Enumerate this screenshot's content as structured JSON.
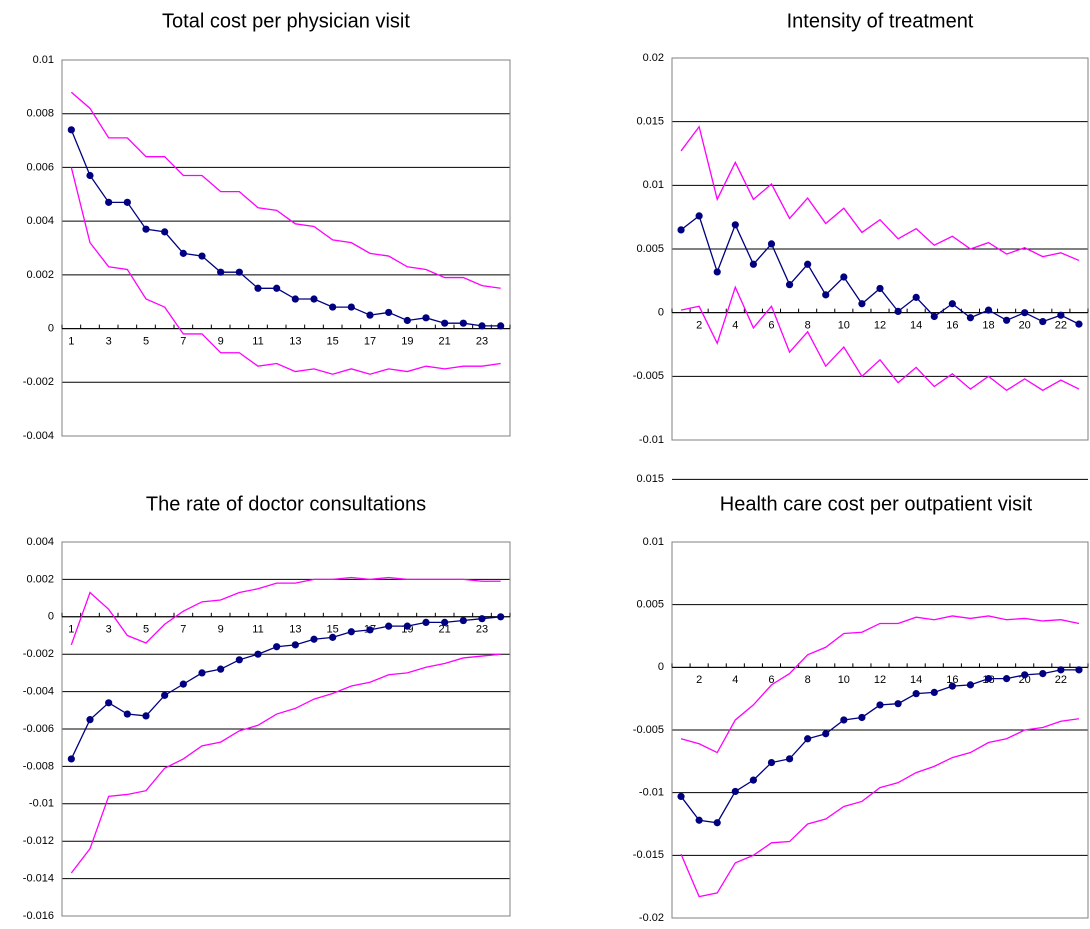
{
  "chart_data": [
    {
      "type": "line",
      "title": "Total cost per physician visit",
      "categories": [
        "1",
        null,
        "3",
        null,
        "5",
        null,
        "7",
        null,
        "9",
        null,
        "11",
        null,
        "13",
        null,
        "15",
        null,
        "17",
        null,
        "19",
        null,
        "21",
        null,
        "23",
        null
      ],
      "series": [
        {
          "color": "#ff00ff",
          "markers": false,
          "values": [
            0.0088,
            0.0082,
            0.0071,
            0.0071,
            0.0064,
            0.0064,
            0.0057,
            0.0057,
            0.0051,
            0.0051,
            0.0045,
            0.0044,
            0.0039,
            0.0038,
            0.0033,
            0.0032,
            0.0028,
            0.0027,
            0.0023,
            0.0022,
            0.0019,
            0.0019,
            0.0016,
            0.0015
          ]
        },
        {
          "color": "#000080",
          "markers": true,
          "values": [
            0.0074,
            0.0057,
            0.0047,
            0.0047,
            0.0037,
            0.0036,
            0.0028,
            0.0027,
            0.0021,
            0.0021,
            0.0015,
            0.0015,
            0.0011,
            0.0011,
            0.0008,
            0.0008,
            0.0005,
            0.0006,
            0.0003,
            0.0004,
            0.0002,
            0.0002,
            0.0001,
            0.0001
          ]
        },
        {
          "color": "#ff00ff",
          "markers": false,
          "values": [
            0.006,
            0.0032,
            0.0023,
            0.0022,
            0.0011,
            0.0008,
            -0.0002,
            -0.0002,
            -0.0009,
            -0.0009,
            -0.0014,
            -0.0013,
            -0.0016,
            -0.0015,
            -0.0017,
            -0.0015,
            -0.0017,
            -0.0015,
            -0.0016,
            -0.0014,
            -0.0015,
            -0.0014,
            -0.0014,
            -0.0013
          ]
        }
      ],
      "ylim": [
        -0.004,
        0.01
      ],
      "yticks": [
        -0.004,
        -0.002,
        0,
        0.002,
        0.004,
        0.006,
        0.008,
        0.01
      ],
      "grid": true
    },
    {
      "type": "line",
      "title": "Intensity of treatment",
      "categories": [
        null,
        "2",
        null,
        "4",
        null,
        "6",
        null,
        "8",
        null,
        "10",
        null,
        "12",
        null,
        "14",
        null,
        "16",
        null,
        "18",
        null,
        "20",
        null,
        "22",
        null
      ],
      "series": [
        {
          "color": "#ff00ff",
          "markers": false,
          "values": [
            0.0127,
            0.0146,
            0.0089,
            0.0118,
            0.0089,
            0.0101,
            0.0074,
            0.009,
            0.007,
            0.0082,
            0.0063,
            0.0073,
            0.0058,
            0.0066,
            0.0053,
            0.006,
            0.005,
            0.0055,
            0.0046,
            0.0051,
            0.0044,
            0.0047,
            0.0041
          ]
        },
        {
          "color": "#000080",
          "markers": true,
          "values": [
            0.0065,
            0.0076,
            0.0032,
            0.0069,
            0.0038,
            0.0054,
            0.0022,
            0.0038,
            0.0014,
            0.0028,
            0.0007,
            0.0019,
            0.0001,
            0.0012,
            -0.0003,
            0.0007,
            -0.0004,
            0.0002,
            -0.0006,
            0.0,
            -0.0007,
            -0.0002,
            -0.0009
          ]
        },
        {
          "color": "#ff00ff",
          "markers": false,
          "values": [
            0.0002,
            0.0005,
            -0.0024,
            0.002,
            -0.0012,
            0.0005,
            -0.0031,
            -0.0015,
            -0.0042,
            -0.0027,
            -0.005,
            -0.0037,
            -0.0055,
            -0.0043,
            -0.0058,
            -0.0048,
            -0.006,
            -0.005,
            -0.0061,
            -0.0052,
            -0.0061,
            -0.0053,
            -0.006
          ]
        }
      ],
      "ylim": [
        -0.01,
        0.02
      ],
      "yticks": [
        -0.01,
        -0.005,
        0,
        0.005,
        0.01,
        0.015,
        0.02
      ],
      "grid": true
    },
    {
      "type": "line",
      "title": "The rate of doctor consultations",
      "categories": [
        "1",
        null,
        "3",
        null,
        "5",
        null,
        "7",
        null,
        "9",
        null,
        "11",
        null,
        "13",
        null,
        "15",
        null,
        "17",
        null,
        "19",
        null,
        "21",
        null,
        "23",
        null
      ],
      "series": [
        {
          "color": "#ff00ff",
          "markers": false,
          "values": [
            -0.0015,
            0.0013,
            0.0004,
            -0.001,
            -0.0014,
            -0.0004,
            0.0003,
            0.0008,
            0.0009,
            0.0013,
            0.0015,
            0.0018,
            0.0018,
            0.002,
            0.002,
            0.0021,
            0.002,
            0.0021,
            0.002,
            0.002,
            0.002,
            0.002,
            0.0019,
            0.0019
          ]
        },
        {
          "color": "#000080",
          "markers": true,
          "values": [
            -0.0076,
            -0.0055,
            -0.0046,
            -0.0052,
            -0.0053,
            -0.0042,
            -0.0036,
            -0.003,
            -0.0028,
            -0.0023,
            -0.002,
            -0.0016,
            -0.0015,
            -0.0012,
            -0.0011,
            -0.0008,
            -0.0007,
            -0.0005,
            -0.0005,
            -0.0003,
            -0.0003,
            -0.0002,
            -0.0001,
            0.0
          ]
        },
        {
          "color": "#ff00ff",
          "markers": false,
          "values": [
            -0.0137,
            -0.0124,
            -0.0096,
            -0.0095,
            -0.0093,
            -0.0081,
            -0.0076,
            -0.0069,
            -0.0067,
            -0.0061,
            -0.0058,
            -0.0052,
            -0.0049,
            -0.0044,
            -0.0041,
            -0.0037,
            -0.0035,
            -0.0031,
            -0.003,
            -0.0027,
            -0.0025,
            -0.0022,
            -0.0021,
            -0.002
          ]
        }
      ],
      "ylim": [
        -0.016,
        0.004
      ],
      "yticks": [
        -0.016,
        -0.014,
        -0.012,
        -0.01,
        -0.008,
        -0.006,
        -0.004,
        -0.002,
        0,
        0.002,
        0.004
      ],
      "grid": true
    },
    {
      "type": "line",
      "title": "Health care cost per outpatient visit",
      "categories": [
        null,
        "2",
        null,
        "4",
        null,
        "6",
        null,
        "8",
        null,
        "10",
        null,
        "12",
        null,
        "14",
        null,
        "16",
        null,
        "18",
        null,
        "20",
        null,
        "22",
        null
      ],
      "series": [
        {
          "color": "#ff00ff",
          "markers": false,
          "values": [
            -0.0057,
            -0.0061,
            -0.0068,
            -0.0042,
            -0.003,
            -0.0014,
            -0.0005,
            0.001,
            0.0016,
            0.0027,
            0.0028,
            0.0035,
            0.0035,
            0.004,
            0.0038,
            0.0041,
            0.0039,
            0.0041,
            0.0038,
            0.0039,
            0.0037,
            0.0038,
            0.0035
          ]
        },
        {
          "color": "#000080",
          "markers": true,
          "values": [
            -0.0103,
            -0.0122,
            -0.0124,
            -0.0099,
            -0.009,
            -0.0076,
            -0.0073,
            -0.0057,
            -0.0053,
            -0.0042,
            -0.004,
            -0.003,
            -0.0029,
            -0.0021,
            -0.002,
            -0.0015,
            -0.0014,
            -0.0009,
            -0.0009,
            -0.0006,
            -0.0005,
            -0.0002,
            -0.0002
          ]
        },
        {
          "color": "#ff00ff",
          "markers": false,
          "values": [
            -0.0149,
            -0.0183,
            -0.018,
            -0.0156,
            -0.015,
            -0.014,
            -0.0139,
            -0.0125,
            -0.0121,
            -0.0111,
            -0.0107,
            -0.0096,
            -0.0092,
            -0.0084,
            -0.0079,
            -0.0072,
            -0.0068,
            -0.006,
            -0.0057,
            -0.005,
            -0.0048,
            -0.0043,
            -0.0041
          ]
        }
      ],
      "ylim": [
        -0.02,
        0.01
      ],
      "yticks": [
        -0.02,
        -0.015,
        -0.01,
        -0.005,
        0,
        0.005,
        0.01,
        0.015
      ],
      "grid": true
    }
  ]
}
